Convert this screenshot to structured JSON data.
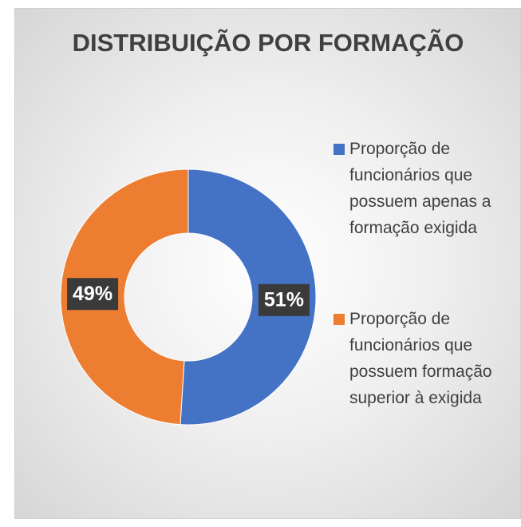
{
  "chart_data": {
    "type": "donut",
    "title": "DISTRIBUIÇÃO POR FORMAÇÃO",
    "categories": [
      "Proporção de funcionários que possuem apenas a formação exigida",
      "Proporção de funcionários que possuem formação superior à exigida"
    ],
    "values": [
      51,
      49
    ],
    "value_labels": [
      "51%",
      "49%"
    ],
    "colors": [
      "#4472c4",
      "#ed7d31"
    ],
    "legend": "right"
  }
}
